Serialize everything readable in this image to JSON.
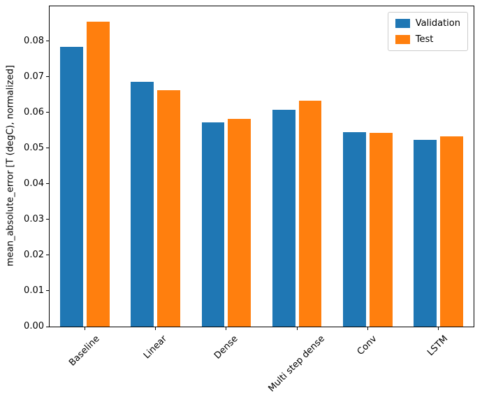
{
  "figure": {
    "background": "#ffffff"
  },
  "chart_data": {
    "type": "bar",
    "title": "",
    "categories": [
      "Baseline",
      "Linear",
      "Dense",
      "Multi step dense",
      "Conv",
      "LSTM"
    ],
    "series": [
      {
        "name": "Validation",
        "color": "#1f77b4",
        "values": [
          0.0785,
          0.0687,
          0.0572,
          0.0607,
          0.0545,
          0.0524
        ]
      },
      {
        "name": "Test",
        "color": "#ff7f0e",
        "values": [
          0.0855,
          0.0663,
          0.0583,
          0.0634,
          0.0543,
          0.0534
        ]
      }
    ],
    "xlabel": "",
    "ylabel": "mean_absolute_error [T (degC), normalized]",
    "yticks": [
      0,
      0.01,
      0.02,
      0.03,
      0.04,
      0.05,
      0.06,
      0.07,
      0.08
    ],
    "ytick_labels": [
      "0.00",
      "0.01",
      "0.02",
      "0.03",
      "0.04",
      "0.05",
      "0.06",
      "0.07",
      "0.08"
    ],
    "ylim": [
      0,
      0.0898
    ],
    "xtick_rotation": 45,
    "grid": false,
    "legend": {
      "position": "upper right",
      "entries": [
        "Validation",
        "Test"
      ]
    },
    "axis_color": "#000000"
  }
}
